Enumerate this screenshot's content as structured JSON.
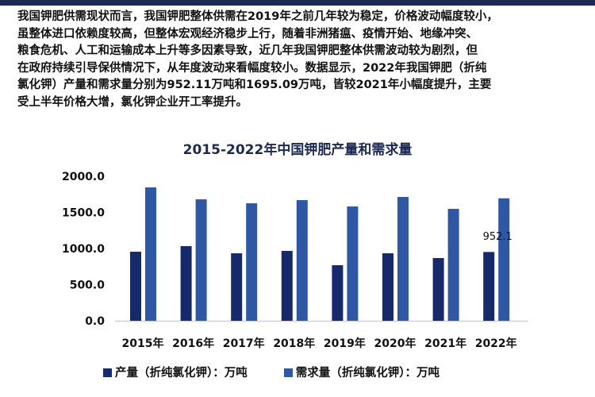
{
  "paragraph_lines": [
    "我国钾肥供需现状而言，我国钾肥整体供需在2019年之前几年较为稳定，价格波动幅度较小，",
    "虽整体进口依赖度较高，但整体宏观经济稳步上行，随着非洲猪瘟、疫情开始、地缘冲突、",
    "粮食危机、人工和运输成本上升等多因素导致，近几年我国钾肥整体供需波动较为剧烈，但",
    "在政府持续引导保供情况下，从年度波动来看幅度较小。数据显示，2022年我国钾肥（折纯",
    "氯化钾）产量和需求量分别为952.11万吨和1695.09万吨，皆较2021年小幅度提升，主要",
    "受上半年价格大增，氯化钾企业开工率提升。"
  ],
  "chart_data": {
    "type": "bar",
    "title": "2015-2022年中国钾肥产量和需求量",
    "categories": [
      "2015年",
      "2016年",
      "2017年",
      "2018年",
      "2019年",
      "2020年",
      "2021年",
      "2022年"
    ],
    "series": [
      {
        "name": "产量（折纯氯化钾）：万吨",
        "color": "#16296b",
        "values": [
          956,
          1033,
          934,
          967,
          769,
          934,
          868,
          952.11
        ]
      },
      {
        "name": "需求量（折纯氯化钾）：万吨",
        "color": "#2e58a6",
        "values": [
          1846,
          1681,
          1626,
          1670,
          1582,
          1714,
          1549,
          1695.09
        ]
      }
    ],
    "data_labels": [
      {
        "category": "2022年",
        "text": "952.1"
      }
    ],
    "yticks": [
      "0.0",
      "500.0",
      "1000.0",
      "1500.0",
      "2000.0"
    ],
    "ylim": [
      0,
      2000
    ],
    "grid": false,
    "legend": "bottom"
  }
}
